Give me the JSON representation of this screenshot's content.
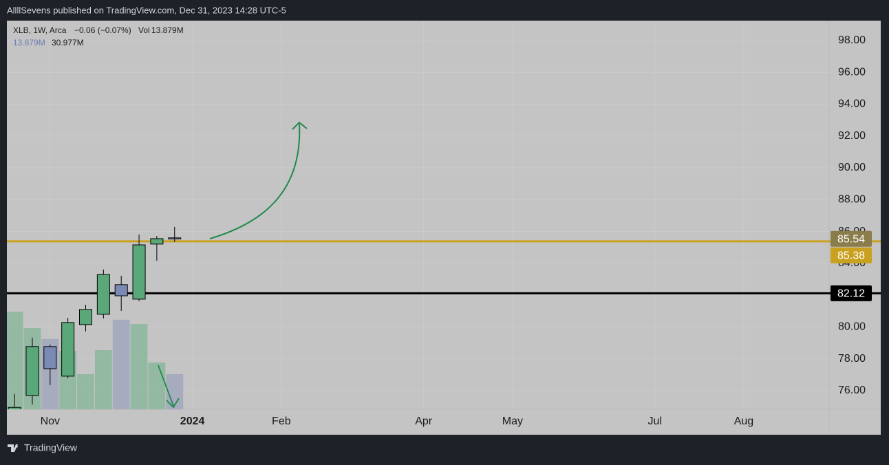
{
  "header": {
    "text": "AllllSevens published on TradingView.com, Dec 31, 2023 14:28 UTC-5"
  },
  "footer": {
    "brand": "TradingView"
  },
  "chart_data": {
    "type": "candlestick",
    "legend": {
      "symbol": "XLB, 1W, Arca",
      "change": "−0.06 (−0.07%)",
      "vol_label": "Vol",
      "vol_value": "13.879M",
      "vol_value_2": "13.879M",
      "vol_ma": "30.977M"
    },
    "x": [
      0,
      1,
      2,
      3,
      4,
      5,
      6,
      7,
      8,
      9
    ],
    "open": [
      74.7,
      75.7,
      78.77,
      76.91,
      80.15,
      80.8,
      82.66,
      81.75,
      85.21,
      85.6
    ],
    "high": [
      75.8,
      79.33,
      78.9,
      80.58,
      81.4,
      83.61,
      83.22,
      85.81,
      85.72,
      86.29
    ],
    "low": [
      74.6,
      75.13,
      76.35,
      76.78,
      79.72,
      80.54,
      81.01,
      81.62,
      84.17,
      85.34
    ],
    "close": [
      74.95,
      78.77,
      77.38,
      80.28,
      81.1,
      83.3,
      81.96,
      85.16,
      85.55,
      85.54
    ],
    "volume": [
      38.6,
      32.1,
      27.8,
      23.1,
      13.9,
      23.4,
      35.4,
      33.7,
      18.5,
      13.879
    ],
    "volume_ylim": [
      0,
      153.7
    ],
    "up_color": "#5aa87a",
    "down_color": "#7a8ab4",
    "neutral_color": "#9aa0ae",
    "volume_up_color": "#8fb89e",
    "volume_down_color": "#a3a9bd",
    "xlim": [
      -0.43,
      45.8
    ],
    "xticks": [
      {
        "value": 2,
        "label": "Nov"
      },
      {
        "value": 10,
        "label": "2024"
      },
      {
        "value": 15,
        "label": "Feb"
      },
      {
        "value": 23,
        "label": "Apr"
      },
      {
        "value": 28,
        "label": "May"
      },
      {
        "value": 36,
        "label": "Jul"
      },
      {
        "value": 41,
        "label": "Aug"
      }
    ],
    "ylim": [
      74.83,
      99.25
    ],
    "yticks": [
      {
        "value": 76,
        "label": "76.00"
      },
      {
        "value": 78,
        "label": "78.00"
      },
      {
        "value": 80,
        "label": "80.00"
      },
      {
        "value": 82,
        "label": "82.00"
      },
      {
        "value": 84,
        "label": "84.00"
      },
      {
        "value": 86,
        "label": "86.00"
      },
      {
        "value": 88,
        "label": "88.00"
      },
      {
        "value": 90,
        "label": "90.00"
      },
      {
        "value": 92,
        "label": "92.00"
      },
      {
        "value": 94,
        "label": "94.00"
      },
      {
        "value": 96,
        "label": "96.00"
      },
      {
        "value": 98,
        "label": "98.00"
      }
    ],
    "grid": true,
    "hlines": [
      {
        "value": 85.38,
        "color": "#c9a11f"
      },
      {
        "value": 82.12,
        "color": "#000000"
      }
    ],
    "last_price": {
      "value": 85.54,
      "color": "#8b7c4c"
    }
  }
}
